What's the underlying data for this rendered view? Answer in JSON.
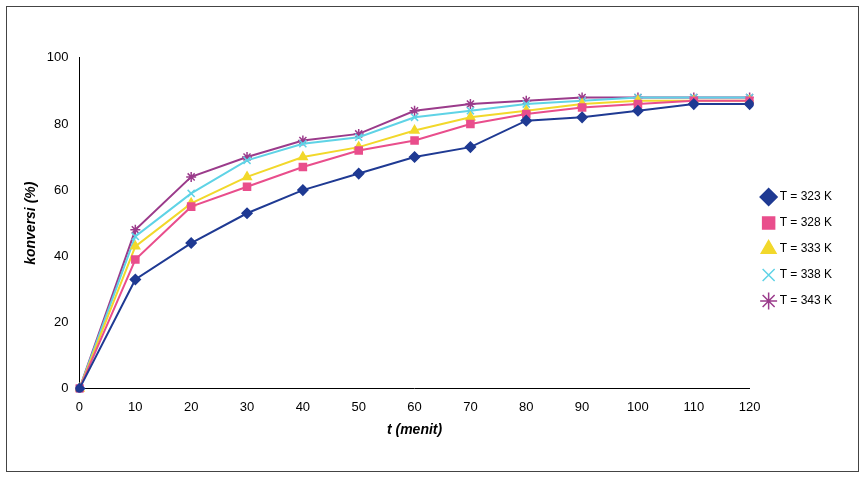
{
  "chart_data": {
    "type": "line",
    "x_label": "t (menit)",
    "y_label": "konversi (%)",
    "x": [
      0,
      10,
      20,
      30,
      40,
      50,
      60,
      70,
      80,
      90,
      100,
      110,
      120
    ],
    "series": [
      {
        "name": "T = 323 K",
        "color": "#1f3a93",
        "marker": "diamond",
        "values": [
          0,
          33,
          44,
          53,
          60,
          65,
          70,
          73,
          81,
          82,
          84,
          86,
          86
        ]
      },
      {
        "name": "T = 328 K",
        "color": "#e94e8c",
        "marker": "square",
        "values": [
          0,
          39,
          55,
          61,
          67,
          72,
          75,
          80,
          83,
          85,
          86,
          87,
          87
        ]
      },
      {
        "name": "T = 333 K",
        "color": "#f2d82b",
        "marker": "triangle",
        "values": [
          0,
          43,
          56,
          64,
          70,
          73,
          78,
          82,
          84,
          86,
          87,
          87,
          87
        ]
      },
      {
        "name": "T = 338 K",
        "color": "#5fd3e6",
        "marker": "x",
        "values": [
          0,
          46,
          59,
          69,
          74,
          76,
          82,
          84,
          86,
          87,
          88,
          88,
          88
        ]
      },
      {
        "name": "T = 343 K",
        "color": "#9b3b8b",
        "marker": "star",
        "values": [
          0,
          48,
          64,
          70,
          75,
          77,
          84,
          86,
          87,
          88,
          88,
          88,
          88
        ]
      }
    ],
    "xlim": [
      0,
      120
    ],
    "xticks": [
      0,
      10,
      20,
      30,
      40,
      50,
      60,
      70,
      80,
      90,
      100,
      110,
      120
    ],
    "ylim": [
      0,
      100
    ],
    "yticks": [
      0,
      20,
      40,
      60,
      80,
      100
    ],
    "grid": false,
    "legend": "right"
  }
}
